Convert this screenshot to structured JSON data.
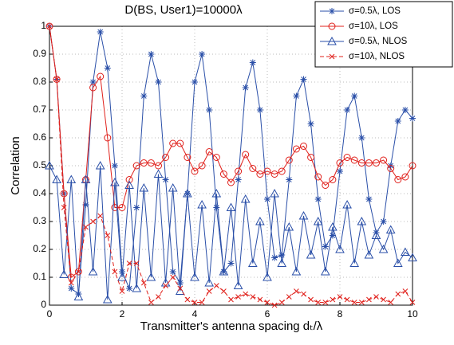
{
  "chart_data": {
    "type": "line",
    "title": "D(BS, User1)=10000λ",
    "xlabel": "Transmitter's antenna spacing dₜ/λ",
    "ylabel": "Correlation",
    "x": [
      0,
      0.2,
      0.4,
      0.6,
      0.8,
      1.0,
      1.2,
      1.4,
      1.6,
      1.8,
      2.0,
      2.2,
      2.4,
      2.6,
      2.8,
      3.0,
      3.2,
      3.4,
      3.6,
      3.8,
      4.0,
      4.2,
      4.4,
      4.6,
      4.8,
      5.0,
      5.2,
      5.4,
      5.6,
      5.8,
      6.0,
      6.2,
      6.4,
      6.6,
      6.8,
      7.0,
      7.2,
      7.4,
      7.6,
      7.8,
      8.0,
      8.2,
      8.4,
      8.6,
      8.8,
      9.0,
      9.2,
      9.4,
      9.6,
      9.8,
      10.0
    ],
    "series": [
      {
        "name": "σ=0.5λ, LOS",
        "color": "#2a4fa8",
        "marker": "star",
        "dashed": false,
        "values": [
          1.0,
          0.81,
          0.4,
          0.06,
          0.04,
          0.36,
          0.8,
          0.98,
          0.85,
          0.5,
          0.12,
          0.06,
          0.35,
          0.75,
          0.9,
          0.8,
          0.45,
          0.12,
          0.08,
          0.4,
          0.8,
          0.9,
          0.7,
          0.35,
          0.12,
          0.15,
          0.45,
          0.78,
          0.87,
          0.7,
          0.38,
          0.17,
          0.18,
          0.45,
          0.75,
          0.81,
          0.65,
          0.38,
          0.21,
          0.25,
          0.48,
          0.7,
          0.75,
          0.6,
          0.38,
          0.26,
          0.3,
          0.5,
          0.66,
          0.7,
          0.67
        ]
      },
      {
        "name": "σ=10λ, LOS",
        "color": "#e0201b",
        "marker": "circle",
        "dashed": false,
        "values": [
          1.0,
          0.81,
          0.4,
          0.1,
          0.12,
          0.45,
          0.78,
          0.82,
          0.6,
          0.35,
          0.35,
          0.45,
          0.5,
          0.51,
          0.51,
          0.5,
          0.53,
          0.58,
          0.58,
          0.53,
          0.48,
          0.5,
          0.55,
          0.53,
          0.47,
          0.44,
          0.48,
          0.54,
          0.49,
          0.47,
          0.48,
          0.47,
          0.48,
          0.52,
          0.56,
          0.57,
          0.53,
          0.46,
          0.43,
          0.45,
          0.51,
          0.53,
          0.52,
          0.51,
          0.51,
          0.51,
          0.52,
          0.49,
          0.45,
          0.46,
          0.5
        ]
      },
      {
        "name": "σ=0.5λ, NLOS",
        "color": "#2a4fa8",
        "marker": "triangle",
        "dashed": false,
        "values": [
          0.5,
          0.45,
          0.11,
          0.45,
          0.03,
          0.45,
          0.12,
          0.5,
          0.02,
          0.44,
          0.1,
          0.43,
          0.06,
          0.42,
          0.1,
          0.47,
          0.08,
          0.42,
          0.05,
          0.4,
          0.1,
          0.36,
          0.08,
          0.4,
          0.12,
          0.35,
          0.07,
          0.38,
          0.15,
          0.3,
          0.1,
          0.4,
          0.15,
          0.28,
          0.12,
          0.32,
          0.18,
          0.3,
          0.12,
          0.28,
          0.2,
          0.36,
          0.15,
          0.3,
          0.18,
          0.25,
          0.2,
          0.27,
          0.15,
          0.19,
          0.17
        ]
      },
      {
        "name": "σ=10λ, NLOS",
        "color": "#e0201b",
        "marker": "x",
        "dashed": true,
        "values": [
          1.0,
          0.81,
          0.35,
          0.08,
          0.12,
          0.28,
          0.3,
          0.32,
          0.25,
          0.12,
          0.05,
          0.15,
          0.15,
          0.08,
          0.01,
          0.03,
          0.07,
          0.1,
          0.06,
          0.02,
          0.01,
          0.01,
          0.05,
          0.07,
          0.05,
          0.02,
          0.03,
          0.04,
          0.03,
          0.02,
          0.01,
          0.0,
          0.01,
          0.03,
          0.05,
          0.04,
          0.02,
          0.01,
          0.01,
          0.02,
          0.03,
          0.02,
          0.01,
          0.01,
          0.02,
          0.03,
          0.02,
          0.01,
          0.04,
          0.05,
          0.01
        ]
      }
    ],
    "xlim": [
      0,
      10
    ],
    "xticks": [
      0,
      2,
      4,
      6,
      8,
      10
    ],
    "ylim": [
      0,
      1
    ],
    "yticks": [
      0,
      0.1,
      0.2,
      0.3,
      0.4,
      0.5,
      0.6,
      0.7,
      0.8,
      0.9,
      1
    ],
    "grid": true,
    "legend": "top-right"
  }
}
